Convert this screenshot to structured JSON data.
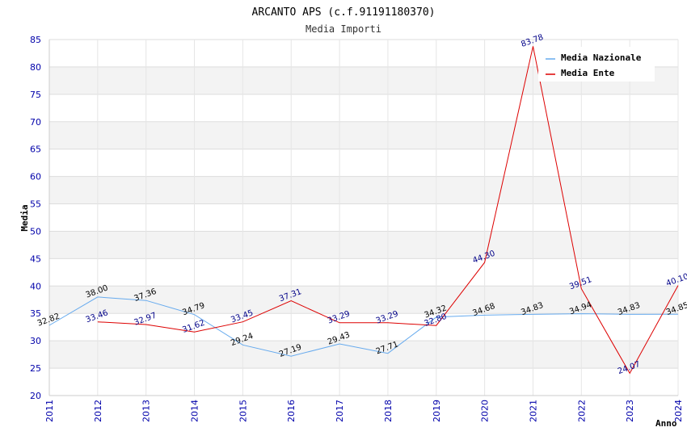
{
  "chart_data": {
    "type": "line",
    "title": "ARCANTO APS (c.f.91191180370)",
    "subtitle": "Media Importi",
    "xlabel": "Anno",
    "ylabel": "Media",
    "ylim": [
      20,
      85
    ],
    "yticks": [
      20,
      25,
      30,
      35,
      40,
      45,
      50,
      55,
      60,
      65,
      70,
      75,
      80,
      85
    ],
    "categories": [
      "2011",
      "2012",
      "2013",
      "2014",
      "2015",
      "2016",
      "2017",
      "2018",
      "2019",
      "2020",
      "2021",
      "2022",
      "2023",
      "2024"
    ],
    "grid": true,
    "legend_position": "top-right",
    "series": [
      {
        "name": "Media Nazionale",
        "color": "#66aaee",
        "label_color": "#000000",
        "values": [
          32.82,
          38.0,
          37.36,
          34.79,
          29.24,
          27.19,
          29.43,
          27.71,
          34.32,
          34.68,
          34.83,
          34.94,
          34.83,
          34.85
        ],
        "labels": [
          "32.82",
          "38.00",
          "37.36",
          "34.79",
          "29.24",
          "27.19",
          "29.43",
          "27.71",
          "34.32",
          "34.68",
          "34.83",
          "34.94",
          "34.83",
          "34.85"
        ]
      },
      {
        "name": "Media Ente",
        "color": "#dd0000",
        "label_color": "#000088",
        "values": [
          null,
          33.46,
          32.97,
          31.62,
          33.45,
          37.31,
          33.29,
          33.29,
          32.8,
          44.3,
          83.78,
          39.51,
          24.07,
          40.1
        ],
        "labels": [
          null,
          "33.46",
          "32.97",
          "31.62",
          "33.45",
          "37.31",
          "33.29",
          "33.29",
          "32.80",
          "44.30",
          "83.78",
          "39.51",
          "24.07",
          "40.10"
        ]
      }
    ]
  }
}
